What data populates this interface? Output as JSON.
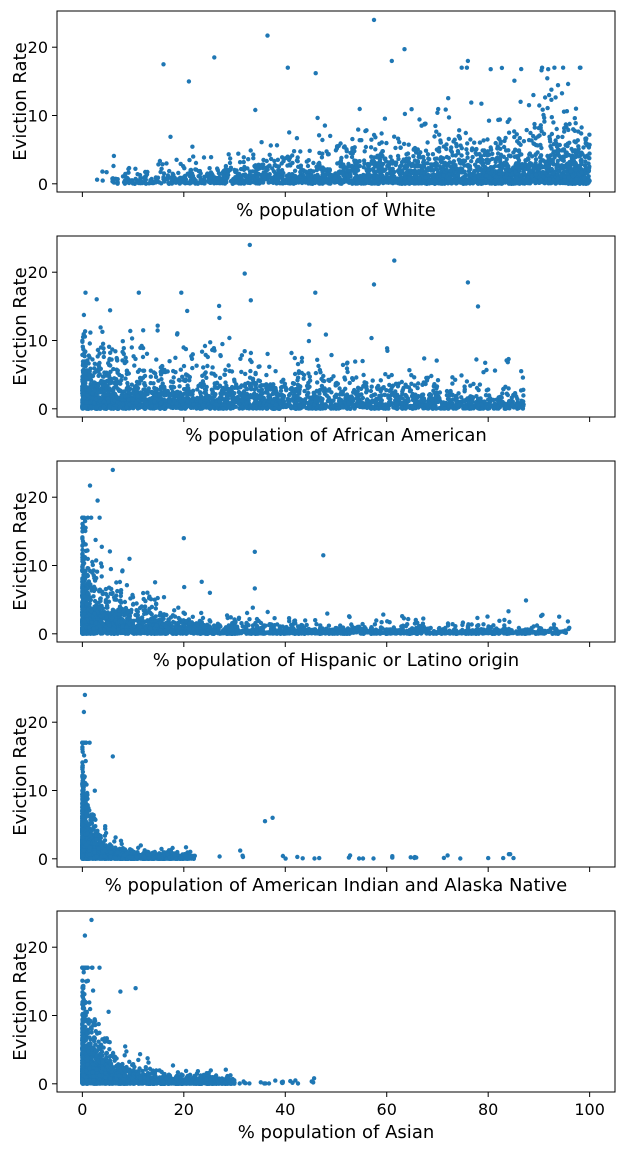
{
  "chart_data": [
    {
      "type": "scatter",
      "xlabel": "% population of White",
      "ylabel": "Eviction Rate",
      "xlim": [
        -5,
        105
      ],
      "ylim": [
        -1.2,
        25.3
      ],
      "xticks": [
        0,
        20,
        40,
        60,
        80,
        100
      ],
      "yticks": [
        0,
        10,
        20
      ],
      "show_xticklabels": false,
      "color": "#1f77b4",
      "marker": "dot",
      "grid": false,
      "distribution": {
        "x_min": 2,
        "x_max": 100,
        "dense_band_y_max": 5,
        "note_peak": "y rises with x"
      },
      "outliers": [
        [
          57.5,
          24.0
        ],
        [
          36.5,
          21.7
        ],
        [
          63.5,
          19.7
        ],
        [
          61.0,
          18.0
        ],
        [
          26.0,
          18.5
        ],
        [
          16.0,
          17.5
        ],
        [
          76.0,
          18.0
        ],
        [
          21.0,
          15.0
        ],
        [
          86.5,
          16.8
        ],
        [
          40.5,
          17.0
        ],
        [
          46.0,
          16.2
        ]
      ]
    },
    {
      "type": "scatter",
      "xlabel": "% population of African American",
      "ylabel": "Eviction Rate",
      "xlim": [
        -5,
        105
      ],
      "ylim": [
        -1.2,
        25.3
      ],
      "xticks": [
        0,
        20,
        40,
        60,
        80,
        100
      ],
      "yticks": [
        0,
        10,
        20
      ],
      "show_xticklabels": false,
      "color": "#1f77b4",
      "marker": "dot",
      "grid": false,
      "distribution": {
        "x_min": 0,
        "x_max": 87,
        "dense_band_y_max": 6,
        "note_peak": "y falls with x"
      },
      "outliers": [
        [
          33.0,
          24.0
        ],
        [
          61.5,
          21.7
        ],
        [
          32.0,
          19.8
        ],
        [
          76.0,
          18.5
        ],
        [
          57.5,
          18.2
        ],
        [
          19.5,
          17.0
        ],
        [
          78.0,
          15.0
        ],
        [
          86.5,
          5.5
        ]
      ]
    },
    {
      "type": "scatter",
      "xlabel": "% population of Hispanic or Latino origin",
      "ylabel": "Eviction Rate",
      "xlim": [
        -5,
        105
      ],
      "ylim": [
        -1.2,
        25.3
      ],
      "xticks": [
        0,
        20,
        40,
        60,
        80,
        100
      ],
      "yticks": [
        0,
        10,
        20
      ],
      "show_xticklabels": false,
      "color": "#1f77b4",
      "marker": "dot",
      "grid": false,
      "distribution": {
        "x_min": 0,
        "x_max": 96,
        "dense_band_y_max": 3,
        "note_peak": "peak near x=2"
      },
      "outliers": [
        [
          6.0,
          24.0
        ],
        [
          1.5,
          21.7
        ],
        [
          3.0,
          19.5
        ],
        [
          20.0,
          14.0
        ],
        [
          34.0,
          12.0
        ],
        [
          47.5,
          11.5
        ],
        [
          84.0,
          3.3
        ],
        [
          94.0,
          2.5
        ]
      ]
    },
    {
      "type": "scatter",
      "xlabel": "% population of American Indian and Alaska Native",
      "ylabel": "Eviction Rate",
      "xlim": [
        -5,
        105
      ],
      "ylim": [
        -1.2,
        25.3
      ],
      "xticks": [
        0,
        20,
        40,
        60,
        80,
        100
      ],
      "yticks": [
        0,
        10,
        20
      ],
      "show_xticklabels": false,
      "color": "#1f77b4",
      "marker": "dot",
      "grid": false,
      "distribution": {
        "x_min": 0,
        "x_max": 85,
        "dense_band_y_max": 2,
        "note_peak": "peak near x=0.5"
      },
      "outliers": [
        [
          0.5,
          24.0
        ],
        [
          0.3,
          21.5
        ],
        [
          6.0,
          15.0
        ],
        [
          37.5,
          6.0
        ],
        [
          36.0,
          5.5
        ],
        [
          72.0,
          0.5
        ],
        [
          85.0,
          0.1
        ],
        [
          80.0,
          0.1
        ]
      ]
    },
    {
      "type": "scatter",
      "xlabel": "% population of Asian",
      "ylabel": "Eviction Rate",
      "xlim": [
        -5,
        105
      ],
      "ylim": [
        -1.2,
        25.3
      ],
      "xticks": [
        0,
        20,
        40,
        60,
        80,
        100
      ],
      "yticks": [
        0,
        10,
        20
      ],
      "show_xticklabels": true,
      "color": "#1f77b4",
      "marker": "dot",
      "grid": false,
      "distribution": {
        "x_min": 0,
        "x_max": 46,
        "dense_band_y_max": 4,
        "note_peak": "peak near x=2"
      },
      "outliers": [
        [
          1.8,
          24.0
        ],
        [
          0.5,
          21.7
        ],
        [
          10.5,
          14.0
        ],
        [
          7.5,
          13.5
        ],
        [
          45.5,
          0.2
        ],
        [
          42.0,
          0.5
        ],
        [
          41.0,
          0.4
        ]
      ]
    }
  ]
}
